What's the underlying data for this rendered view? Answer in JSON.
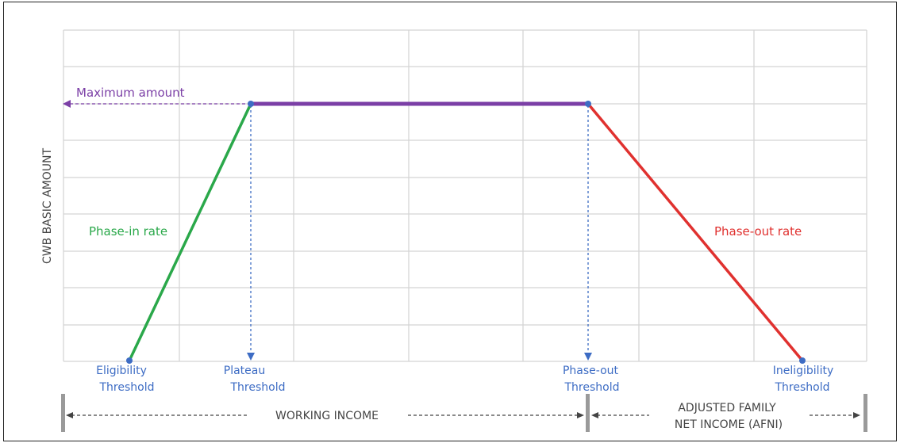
{
  "diagram": {
    "y_axis_label": "CWB BASIC AMOUNT",
    "max_label": "Maximum amount",
    "phase_in_label": "Phase-in rate",
    "phase_out_label": "Phase-out rate",
    "thresholds": [
      {
        "line1": "Eligibility",
        "line2": "Threshold"
      },
      {
        "line1": "Plateau",
        "line2": "Threshold"
      },
      {
        "line1": "Phase-out",
        "line2": "Threshold"
      },
      {
        "line1": "Ineligibility",
        "line2": "Threshold"
      }
    ],
    "working_income_label": "WORKING INCOME",
    "afni_label_line1": "ADJUSTED FAMILY",
    "afni_label_line2": "NET INCOME (AFNI)"
  },
  "colors": {
    "grid": "#d3d3d3",
    "axis": "#9a9a9a",
    "plateau": "#7b3fa6",
    "phase_in": "#2aa84a",
    "phase_out": "#e0312f",
    "threshold": "#3d6cc4",
    "bracket_text": "#444444",
    "frame": "#222222"
  }
}
